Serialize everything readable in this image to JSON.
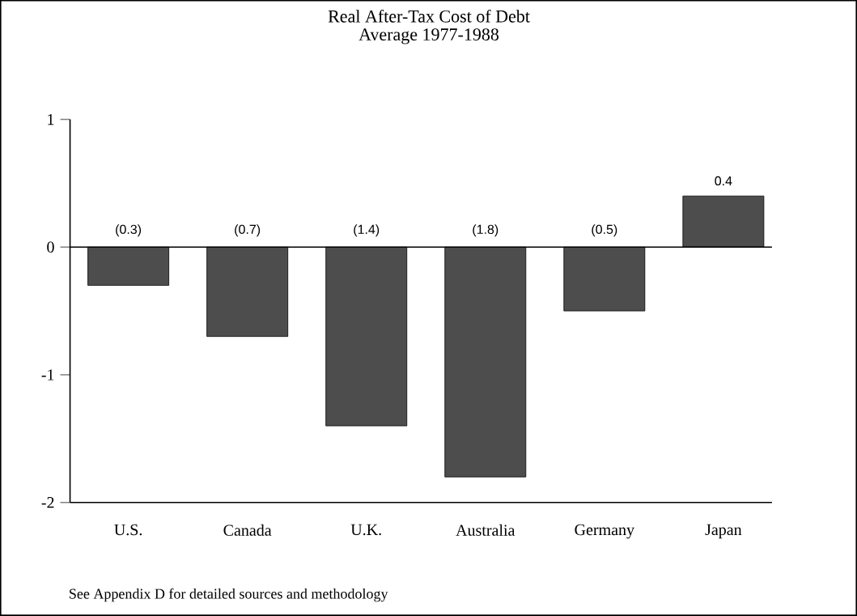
{
  "chart_data": {
    "type": "bar",
    "title": "Real After-Tax Cost of Debt",
    "subtitle": "Average 1977-1988",
    "categories": [
      "U.S.",
      "Canada",
      "U.K.",
      "Australia",
      "Germany",
      "Japan"
    ],
    "values": [
      -0.3,
      -0.7,
      -1.4,
      -1.8,
      -0.5,
      0.4
    ],
    "value_labels": [
      "(0.3)",
      "(0.7)",
      "(1.4)",
      "(1.8)",
      "(0.5)",
      "0.4"
    ],
    "color": "#4d4d4d",
    "ylim": [
      -2,
      1
    ],
    "yticks": [
      -2,
      -1,
      0,
      1
    ],
    "ref_lines": [
      {
        "axis": "y",
        "value": 0
      }
    ],
    "grid": false,
    "annotations": [
      "See Appendix D for detailed sources and methodology"
    ]
  }
}
